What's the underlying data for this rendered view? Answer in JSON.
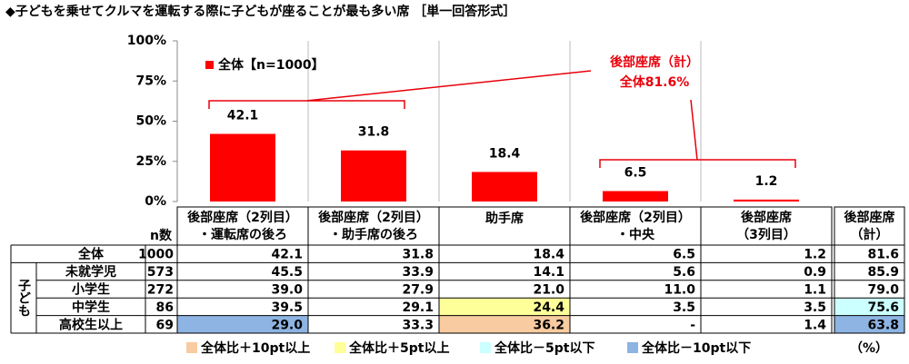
{
  "chart_data": {
    "type": "bar",
    "title": "◆子どもを乗せてクルマを運転する際に子どもが座ることが最も多い席 ［単一回答形式］",
    "categories": [
      [
        "後部座席（2列目）",
        "・運転席の後ろ"
      ],
      [
        "後部座席（2列目）",
        "・助手席の後ろ"
      ],
      [
        "助手席"
      ],
      [
        "後部座席（2列目）",
        "・中央"
      ],
      [
        "後部座席",
        "（3列目）"
      ]
    ],
    "series": [
      {
        "name": "全体【n=1000】",
        "color": "#ff0000",
        "values": [
          42.1,
          31.8,
          18.4,
          6.5,
          1.2
        ]
      }
    ],
    "ylim": [
      0,
      100
    ],
    "yticks": [
      {
        "value": 0,
        "label": "0%"
      },
      {
        "value": 25,
        "label": "25%"
      },
      {
        "value": 50,
        "label": "50%"
      },
      {
        "value": 75,
        "label": "75%"
      },
      {
        "value": 100,
        "label": "100%"
      }
    ],
    "annotation": [
      "後部座席（計）",
      "全体81.6%"
    ]
  },
  "table": {
    "n_header": "n数",
    "total_header": [
      "後部座席",
      "（計）"
    ],
    "overall": {
      "label": "全体",
      "n": "1000",
      "total": "81.6"
    },
    "group_label": "子ども",
    "rows": [
      {
        "label": "未就学児",
        "n": "573",
        "cells": [
          "45.5",
          "33.9",
          "14.1",
          "5.6",
          "0.9",
          "85.9"
        ]
      },
      {
        "label": "小学生",
        "n": "272",
        "cells": [
          "39.0",
          "27.9",
          "21.0",
          "11.0",
          "1.1",
          "79.0"
        ]
      },
      {
        "label": "中学生",
        "n": "86",
        "cells": [
          "39.5",
          "29.1",
          "24.4",
          "3.5",
          "3.5",
          "75.6"
        ]
      },
      {
        "label": "高校生以上",
        "n": "69",
        "cells": [
          "29.0",
          "33.3",
          "36.2",
          "-",
          "1.4",
          "63.8"
        ]
      }
    ],
    "legend": [
      {
        "name": "全体比＋10pt以上",
        "color": "#f8cba0"
      },
      {
        "name": "全体比＋5pt以上",
        "color": "#ffff99"
      },
      {
        "name": "全体比－5pt以下",
        "color": "#ccffff"
      },
      {
        "name": "全体比－10pt以下",
        "color": "#8db4e2"
      }
    ],
    "highlights": [
      {
        "row": 2,
        "col": 2,
        "key": 1
      },
      {
        "row": 2,
        "col": 5,
        "key": 2
      },
      {
        "row": 3,
        "col": 0,
        "key": 3
      },
      {
        "row": 3,
        "col": 2,
        "key": 0
      },
      {
        "row": 3,
        "col": 5,
        "key": 3
      }
    ],
    "unit": "（%）"
  }
}
